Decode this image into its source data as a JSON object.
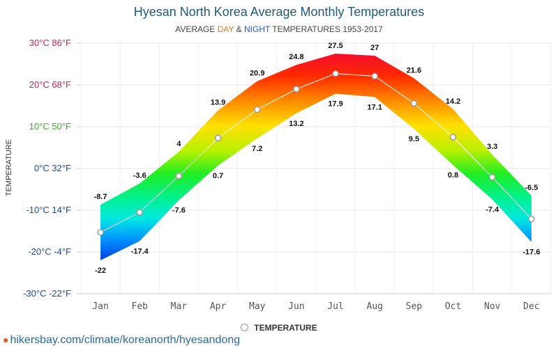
{
  "title": "Hyesan North Korea Average Monthly Temperatures",
  "subtitle": {
    "prefix": "AVERAGE",
    "day": "DAY",
    "amp": "&",
    "night": "NIGHT",
    "suffix": "TEMPERATURES 1953-2017"
  },
  "footer": {
    "url": "hikersbay.com/climate/koreanorth/hyesandong"
  },
  "legend": {
    "label": "TEMPERATURE"
  },
  "chart_data": {
    "type": "area",
    "title": "Hyesan North Korea Average Monthly Temperatures",
    "subtitle": "AVERAGE DAY & NIGHT TEMPERATURES 1953-2017",
    "ylabel": "TEMPERATURE",
    "ylim": [
      -30,
      30
    ],
    "categories": [
      "Jan",
      "Feb",
      "Mar",
      "Apr",
      "May",
      "Jun",
      "Jul",
      "Aug",
      "Sep",
      "Oct",
      "Nov",
      "Dec"
    ],
    "y_ticks": [
      {
        "value": 30,
        "label": "30°C 86°F",
        "color": "#d61a5a"
      },
      {
        "value": 20,
        "label": "20°C 68°F",
        "color": "#d61a5a"
      },
      {
        "value": 10,
        "label": "10°C 50°F",
        "color": "#3aa82a"
      },
      {
        "value": 0,
        "label": "0°C 32°F",
        "color": "#1a4aa8"
      },
      {
        "value": -10,
        "label": "-10°C 14°F",
        "color": "#1a4aa8"
      },
      {
        "value": -20,
        "label": "-20°C -4°F",
        "color": "#1a4aa8"
      },
      {
        "value": -30,
        "label": "-30°C -22°F",
        "color": "#1a4aa8"
      }
    ],
    "series": [
      {
        "name": "DAY",
        "values": [
          -8.7,
          -3.6,
          4,
          13.9,
          20.9,
          24.8,
          27.5,
          27,
          21.6,
          14.2,
          3.3,
          -6.5
        ]
      },
      {
        "name": "NIGHT",
        "values": [
          -22,
          -17.4,
          -7.6,
          0.7,
          7.2,
          13.2,
          17.9,
          17.1,
          9.5,
          0.8,
          -7.4,
          -17.6
        ]
      },
      {
        "name": "TEMPERATURE",
        "values": [
          -15.3,
          -10.5,
          -1.8,
          7.3,
          14.1,
          19.0,
          22.7,
          22.1,
          15.6,
          7.5,
          -2.1,
          -12.1
        ]
      }
    ],
    "grid": true,
    "legend_position": "bottom"
  }
}
